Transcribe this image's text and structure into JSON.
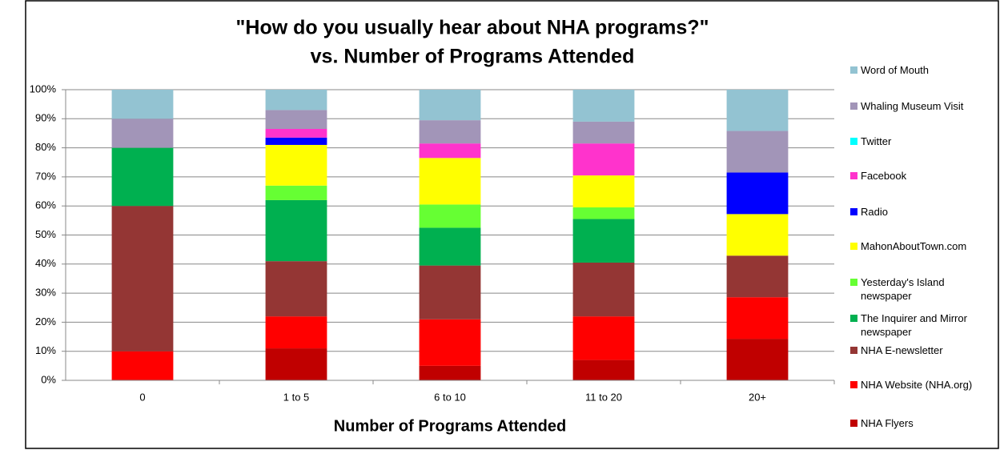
{
  "chart_data": {
    "type": "stacked_bar",
    "title": "\"How do you usually hear about NHA programs?\"",
    "subtitle": "vs. Number of Programs Attended",
    "xlabel": "Number of Programs Attended",
    "categories": [
      "0",
      "1 to 5",
      "6 to 10",
      "11 to 20",
      "20+"
    ],
    "series": [
      {
        "name": "NHA Flyers",
        "color": "#c00000",
        "values": [
          0,
          11,
          5,
          7,
          14.3
        ]
      },
      {
        "name": "NHA Website (NHA.org)",
        "color": "#ff0000",
        "values": [
          10,
          11,
          16,
          15,
          14.3
        ]
      },
      {
        "name": "NHA E-newsletter",
        "color": "#943634",
        "values": [
          50,
          19,
          18.5,
          18.5,
          14.3
        ]
      },
      {
        "name": "The Inquirer and Mirror newspaper",
        "color": "#00b050",
        "values": [
          20,
          21,
          13,
          15,
          0
        ]
      },
      {
        "name": "Yesterday's Island newspaper",
        "color": "#66ff33",
        "values": [
          0,
          5,
          8,
          4,
          0
        ]
      },
      {
        "name": "MahonAboutTown.com",
        "color": "#ffff00",
        "values": [
          0,
          14,
          16,
          11,
          14.3
        ]
      },
      {
        "name": "Radio",
        "color": "#0000ff",
        "values": [
          0,
          2.5,
          0,
          0,
          14.3
        ]
      },
      {
        "name": "Facebook",
        "color": "#ff33cc",
        "values": [
          0,
          3,
          5,
          11,
          0
        ]
      },
      {
        "name": "Twitter",
        "color": "#00ffff",
        "values": [
          0,
          0,
          0,
          0,
          0
        ]
      },
      {
        "name": "Whaling Museum Visit",
        "color": "#a295b8",
        "values": [
          10,
          6.5,
          8,
          7.5,
          14.3
        ]
      },
      {
        "name": "Word of Mouth",
        "color": "#93c3d2",
        "values": [
          10,
          7,
          10.5,
          11,
          14.2
        ]
      }
    ],
    "ylim": [
      0,
      100
    ],
    "yticks": [
      {
        "value": 0,
        "label": "0%"
      },
      {
        "value": 10,
        "label": "10%"
      },
      {
        "value": 20,
        "label": "20%"
      },
      {
        "value": 30,
        "label": "30%"
      },
      {
        "value": 40,
        "label": "40%"
      },
      {
        "value": 50,
        "label": "50%"
      },
      {
        "value": 60,
        "label": "60%"
      },
      {
        "value": 70,
        "label": "70%"
      },
      {
        "value": 80,
        "label": "80%"
      },
      {
        "value": 90,
        "label": "90%"
      },
      {
        "value": 100,
        "label": "100%"
      }
    ],
    "grid": true,
    "legend": "right"
  }
}
